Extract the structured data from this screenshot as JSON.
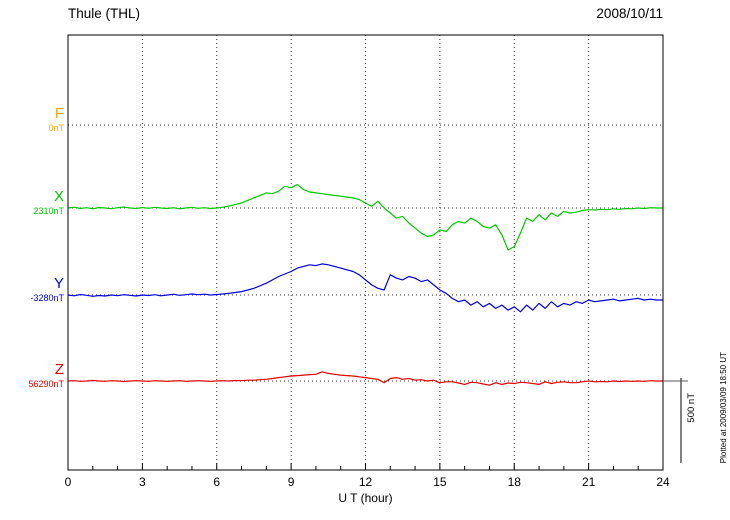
{
  "header": {
    "station": "Thule (THL)",
    "date": "2008/10/11"
  },
  "axis": {
    "xlabel": "U T (hour)"
  },
  "scale_bar": {
    "label": "500 nT",
    "nT": 500
  },
  "plot_note": "Plotted at 2009/03/09 18:50 UT",
  "chart_data": {
    "type": "line",
    "title": "Thule (THL) magnetogram 2008/10/11",
    "xlabel": "U T (hour)",
    "x_range": [
      0,
      24
    ],
    "x_ticks": [
      0,
      3,
      6,
      9,
      12,
      15,
      18,
      21,
      24
    ],
    "grid": "dotted vertical lines every 3 hours, dotted horizontal baseline per channel",
    "scale": {
      "label": "500 nT",
      "nT": 500
    },
    "series": [
      {
        "name": "F",
        "baseline_label": "0nT",
        "baseline_nT": 0,
        "color": "#FFA500",
        "offsets_nT": []
      },
      {
        "name": "X",
        "baseline_label": "2310nT",
        "baseline_nT": 2310,
        "color": "#00C800",
        "offsets_nT": [
          0,
          5,
          -3,
          2,
          -5,
          3,
          0,
          -4,
          2,
          6,
          0,
          -3,
          3,
          -2,
          4,
          0,
          -3,
          2,
          -5,
          0,
          4,
          -2,
          2,
          -3,
          0,
          5,
          12,
          20,
          30,
          45,
          60,
          75,
          90,
          85,
          100,
          130,
          120,
          140,
          110,
          95,
          90,
          85,
          80,
          75,
          70,
          65,
          60,
          50,
          30,
          10,
          40,
          0,
          -30,
          -60,
          -50,
          -90,
          -120,
          -150,
          -170,
          -160,
          -130,
          -140,
          -100,
          -80,
          -90,
          -60,
          -80,
          -110,
          -120,
          -100,
          -160,
          -250,
          -230,
          -150,
          -60,
          -80,
          -40,
          -70,
          -30,
          -50,
          -20,
          -30,
          -25,
          -15,
          -10,
          -12,
          -8,
          -10,
          -5,
          -8,
          -3,
          -5,
          0,
          -3,
          2,
          0,
          0
        ]
      },
      {
        "name": "Y",
        "baseline_label": "-3280nT",
        "baseline_nT": -3280,
        "color": "#0000E0",
        "offsets_nT": [
          0,
          -5,
          3,
          -2,
          -8,
          -3,
          -6,
          0,
          -4,
          2,
          -2,
          -6,
          0,
          -3,
          2,
          -5,
          0,
          4,
          -2,
          2,
          6,
          2,
          5,
          0,
          3,
          6,
          10,
          15,
          20,
          30,
          40,
          55,
          70,
          90,
          110,
          125,
          140,
          160,
          170,
          180,
          175,
          185,
          180,
          170,
          160,
          150,
          140,
          120,
          90,
          60,
          40,
          30,
          120,
          100,
          90,
          110,
          100,
          80,
          90,
          60,
          30,
          10,
          -20,
          -40,
          -30,
          -60,
          -40,
          -70,
          -50,
          -80,
          -60,
          -90,
          -70,
          -100,
          -60,
          -90,
          -50,
          -80,
          -40,
          -70,
          -50,
          -60,
          -40,
          -50,
          -30,
          -40,
          -35,
          -30,
          -25,
          -35,
          -30,
          -25,
          -20,
          -30,
          -25,
          -30,
          -30
        ]
      },
      {
        "name": "Z",
        "baseline_label": "56290nT",
        "baseline_nT": 56290,
        "color": "#E00000",
        "offsets_nT": [
          0,
          2,
          -2,
          0,
          3,
          0,
          -2,
          2,
          0,
          -3,
          0,
          2,
          0,
          -2,
          2,
          0,
          -2,
          0,
          2,
          -2,
          0,
          2,
          0,
          -2,
          0,
          2,
          0,
          3,
          2,
          5,
          5,
          8,
          10,
          15,
          20,
          25,
          30,
          32,
          35,
          38,
          40,
          55,
          45,
          40,
          35,
          32,
          30,
          25,
          20,
          15,
          10,
          -10,
          15,
          20,
          10,
          15,
          5,
          8,
          0,
          5,
          -10,
          -5,
          -5,
          -12,
          -20,
          -8,
          -10,
          -18,
          -25,
          -10,
          -20,
          -12,
          -15,
          -8,
          -10,
          -15,
          -20,
          -5,
          -15,
          -8,
          -5,
          -10,
          -10,
          -5,
          0,
          -5,
          -3,
          -5,
          0,
          -3,
          0,
          -2,
          0,
          -2,
          2,
          0,
          0
        ]
      }
    ]
  }
}
